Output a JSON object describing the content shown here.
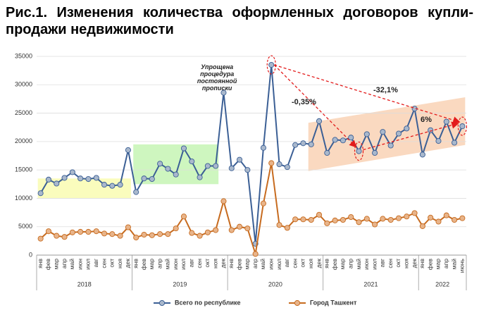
{
  "chart_data": {
    "type": "line",
    "title": "Рис.1. Изменения количества оформленных договоров купли-продажи недвижимости",
    "category_groups": [
      {
        "label": "2018",
        "categories": [
          "янв",
          "фев",
          "мар",
          "апр",
          "май",
          "июн",
          "июл",
          "авг",
          "сен",
          "окт",
          "ноя",
          "дек"
        ]
      },
      {
        "label": "2019",
        "categories": [
          "янв",
          "фев",
          "мар",
          "апр",
          "май",
          "июн",
          "июл",
          "авг",
          "сен",
          "окт",
          "ноя",
          "дек"
        ]
      },
      {
        "label": "2020",
        "categories": [
          "янв",
          "фев",
          "мар",
          "апр",
          "май",
          "июн",
          "июл",
          "авг",
          "сен",
          "окт",
          "ноя",
          "дек"
        ]
      },
      {
        "label": "2021",
        "categories": [
          "янв",
          "фев",
          "мар",
          "апр",
          "май",
          "июн",
          "июл",
          "авг",
          "сен",
          "окт",
          "ноя",
          "дек"
        ]
      },
      {
        "label": "2022",
        "categories": [
          "янв",
          "фев",
          "мар",
          "апр",
          "май",
          "июнь"
        ]
      }
    ],
    "series": [
      {
        "name": "Всего по республике",
        "color": "#3b5f95",
        "marker": "#a9b8cc",
        "values": [
          10900,
          13300,
          12600,
          13600,
          14600,
          13500,
          13400,
          13600,
          12400,
          12200,
          12400,
          18500,
          11100,
          13500,
          13400,
          16100,
          15200,
          14200,
          18800,
          16500,
          13700,
          15700,
          15700,
          28600,
          15300,
          16800,
          15000,
          2000,
          18900,
          33500,
          16000,
          15500,
          19400,
          19700,
          19500,
          23600,
          18000,
          20300,
          20200,
          20700,
          18300,
          21300,
          18000,
          21700,
          19300,
          21400,
          22300,
          25800,
          17700,
          22000,
          20100,
          23500,
          19800,
          22700
        ]
      },
      {
        "name": "Город Ташкент",
        "color": "#c76b1f",
        "marker": "#e8b48a",
        "values": [
          2900,
          4200,
          3400,
          3200,
          4000,
          4100,
          4100,
          4200,
          3800,
          3700,
          3400,
          4900,
          3100,
          3600,
          3500,
          3700,
          3700,
          4700,
          6800,
          3900,
          3400,
          4000,
          4400,
          9500,
          4400,
          5000,
          4700,
          200,
          9100,
          16200,
          5300,
          4800,
          6300,
          6300,
          6200,
          7100,
          5600,
          6100,
          6200,
          6700,
          5800,
          6400,
          5400,
          6400,
          6200,
          6500,
          6800,
          7400,
          5100,
          6600,
          5900,
          7000,
          6200,
          6500
        ]
      }
    ],
    "ylim": [
      0,
      35000
    ],
    "yticks": [
      0,
      5000,
      10000,
      15000,
      20000,
      25000,
      30000,
      35000
    ],
    "grid": true,
    "annotations": [
      "Упрощена процедура постоянной прописки",
      "-0,35%",
      "-32,1%",
      "6%"
    ]
  }
}
